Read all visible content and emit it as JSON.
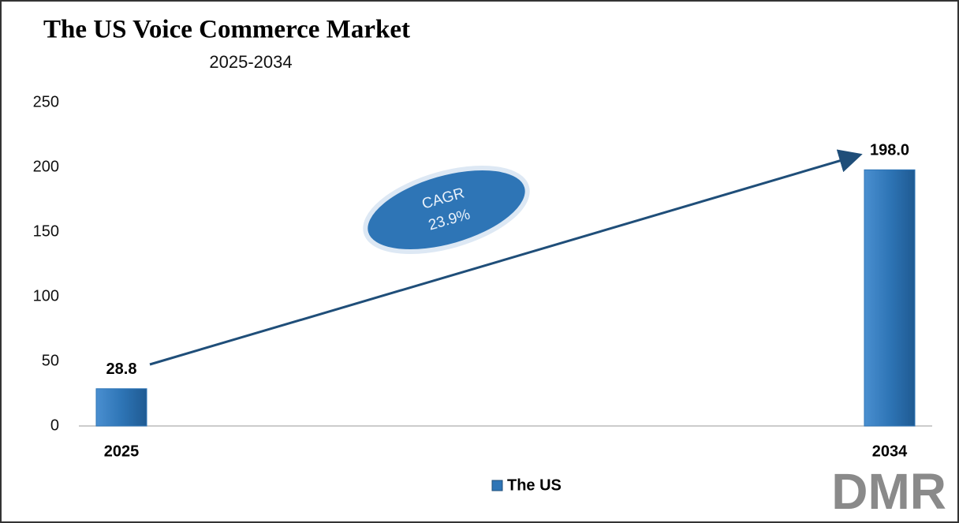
{
  "chart_data": {
    "type": "bar",
    "title": "The US Voice Commerce Market",
    "subtitle": "2025-2034",
    "categories": [
      "2025",
      "2034"
    ],
    "series": [
      {
        "name": "The US",
        "color": "#2e75b6",
        "values": [
          28.8,
          198.0
        ],
        "value_labels": [
          "28.8",
          "198.0"
        ]
      }
    ],
    "ylim": [
      0,
      250
    ],
    "yticks": [
      0,
      50,
      100,
      150,
      200,
      250
    ],
    "grid": false,
    "annotation": {
      "label": "CAGR",
      "value_label": "23.9%"
    },
    "logo": "DMR"
  }
}
